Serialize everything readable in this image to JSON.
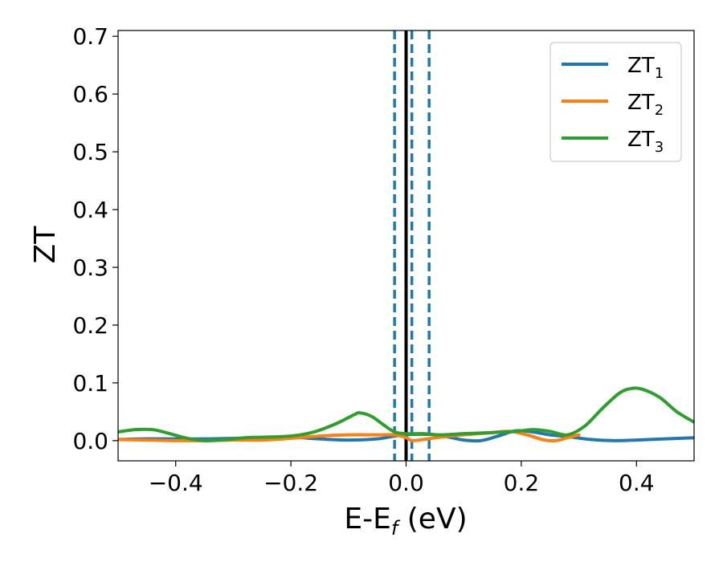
{
  "chart_data": {
    "type": "line",
    "xlabel": "E-E",
    "xlabel_sub": "f",
    "xlabel_unit": " (eV)",
    "ylabel": "ZT",
    "xlim": [
      -0.5,
      0.5
    ],
    "ylim": [
      -0.035,
      0.71
    ],
    "x_ticks": [
      -0.4,
      -0.2,
      0.0,
      0.2,
      0.4
    ],
    "x_tick_labels": [
      "−0.4",
      "−0.2",
      "0.0",
      "0.2",
      "0.4"
    ],
    "y_ticks": [
      0.0,
      0.1,
      0.2,
      0.3,
      0.4,
      0.5,
      0.6,
      0.7
    ],
    "y_tick_labels": [
      "0.0",
      "0.1",
      "0.2",
      "0.3",
      "0.4",
      "0.5",
      "0.6",
      "0.7"
    ],
    "grid": false,
    "legend_position": "top-right",
    "vertical_lines": [
      {
        "x": 0.0,
        "color": "#000000",
        "style": "solid"
      },
      {
        "x": -0.02,
        "color": "#1f77b4",
        "style": "dashed"
      },
      {
        "x": 0.01,
        "color": "#1f77b4",
        "style": "dashed"
      },
      {
        "x": 0.04,
        "color": "#1f77b4",
        "style": "dashed"
      }
    ],
    "series": [
      {
        "name": "ZT",
        "name_sub": "1",
        "color": "#1f77b4",
        "points": [
          [
            -0.5,
            0.002
          ],
          [
            -0.45,
            0.003
          ],
          [
            -0.4,
            0.003
          ],
          [
            -0.35,
            0.003
          ],
          [
            -0.3,
            0.004
          ],
          [
            -0.25,
            0.005
          ],
          [
            -0.2,
            0.006
          ],
          [
            -0.15,
            0.003
          ],
          [
            -0.1,
            0.001
          ],
          [
            -0.05,
            0.003
          ],
          [
            -0.02,
            0.008
          ],
          [
            0.0,
            0.01
          ],
          [
            0.02,
            0.011
          ],
          [
            0.05,
            0.01
          ],
          [
            0.08,
            0.005
          ],
          [
            0.1,
            0.001
          ],
          [
            0.13,
            0.0
          ],
          [
            0.16,
            0.008
          ],
          [
            0.19,
            0.017
          ],
          [
            0.22,
            0.015
          ],
          [
            0.25,
            0.01
          ],
          [
            0.28,
            0.007
          ],
          [
            0.32,
            0.002
          ],
          [
            0.36,
            0.0
          ],
          [
            0.4,
            0.001
          ],
          [
            0.45,
            0.003
          ],
          [
            0.5,
            0.005
          ]
        ]
      },
      {
        "name": "ZT",
        "name_sub": "2",
        "color": "#ff7f0e",
        "points": [
          [
            -0.5,
            0.002
          ],
          [
            -0.45,
            0.001
          ],
          [
            -0.4,
            0.0
          ],
          [
            -0.35,
            0.0
          ],
          [
            -0.3,
            0.001
          ],
          [
            -0.25,
            0.001
          ],
          [
            -0.2,
            0.004
          ],
          [
            -0.15,
            0.008
          ],
          [
            -0.1,
            0.01
          ],
          [
            -0.05,
            0.01
          ],
          [
            -0.02,
            0.01
          ],
          [
            0.0,
            0.005
          ],
          [
            0.01,
            0.0
          ],
          [
            0.03,
            0.002
          ],
          [
            0.06,
            0.006
          ],
          [
            0.1,
            0.01
          ],
          [
            0.14,
            0.013
          ],
          [
            0.18,
            0.016
          ],
          [
            0.21,
            0.01
          ],
          [
            0.24,
            0.001
          ],
          [
            0.26,
            0.0
          ],
          [
            0.28,
            0.005
          ],
          [
            0.3,
            0.01
          ]
        ]
      },
      {
        "name": "ZT",
        "name_sub": "3",
        "color": "#2ca02c",
        "points": [
          [
            -0.5,
            0.015
          ],
          [
            -0.47,
            0.019
          ],
          [
            -0.44,
            0.019
          ],
          [
            -0.41,
            0.012
          ],
          [
            -0.38,
            0.004
          ],
          [
            -0.35,
            0.0
          ],
          [
            -0.31,
            0.002
          ],
          [
            -0.28,
            0.005
          ],
          [
            -0.25,
            0.006
          ],
          [
            -0.2,
            0.008
          ],
          [
            -0.16,
            0.015
          ],
          [
            -0.12,
            0.03
          ],
          [
            -0.09,
            0.045
          ],
          [
            -0.08,
            0.048
          ],
          [
            -0.06,
            0.042
          ],
          [
            -0.04,
            0.028
          ],
          [
            -0.02,
            0.015
          ],
          [
            0.0,
            0.012
          ],
          [
            0.03,
            0.012
          ],
          [
            0.06,
            0.01
          ],
          [
            0.1,
            0.012
          ],
          [
            0.15,
            0.014
          ],
          [
            0.19,
            0.016
          ],
          [
            0.22,
            0.019
          ],
          [
            0.25,
            0.016
          ],
          [
            0.28,
            0.01
          ],
          [
            0.31,
            0.025
          ],
          [
            0.34,
            0.055
          ],
          [
            0.37,
            0.082
          ],
          [
            0.39,
            0.09
          ],
          [
            0.41,
            0.089
          ],
          [
            0.44,
            0.075
          ],
          [
            0.47,
            0.05
          ],
          [
            0.5,
            0.032
          ]
        ]
      }
    ]
  }
}
